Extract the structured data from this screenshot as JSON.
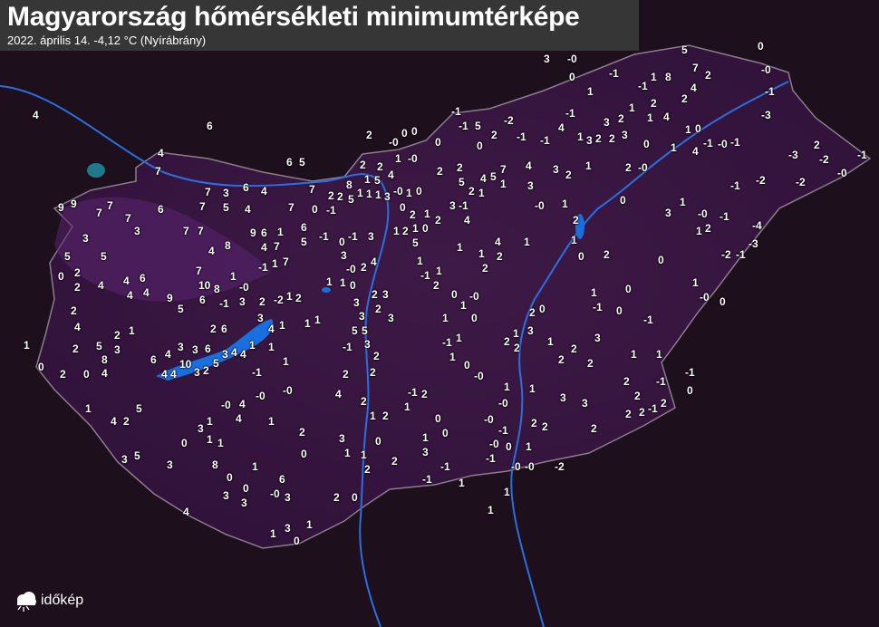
{
  "header": {
    "title": "Magyarország hőmérsékleti minimumtérképe",
    "subtitle": "2022. április 14.  -4,12 °C (Nyírábrány)"
  },
  "logo": {
    "text": "időkép",
    "icon": "cloud-sun-icon"
  },
  "colors": {
    "background": "#1a0c19",
    "country_fill": "#3b1742",
    "water": "#1a6fe0",
    "label": "#ffffff",
    "header_bg": "#3a3a3a"
  },
  "legend_unit": "°C",
  "stations": [
    "4",
    "6",
    "4",
    "7",
    "6",
    "5",
    "7",
    "3",
    "6",
    "4",
    "7",
    "9",
    "9",
    "7",
    "7",
    "6",
    "7",
    "5",
    "4",
    "7",
    "0",
    "-1",
    "7",
    "3",
    "3",
    "7",
    "7",
    "4",
    "8",
    "9",
    "6",
    "4",
    "7",
    "1",
    "6",
    "5",
    "-1",
    "5",
    "5",
    "1",
    "-1",
    "7",
    "7",
    "0",
    "2",
    "2",
    "4",
    "4",
    "6",
    "4",
    "4",
    "9",
    "1",
    "10",
    "8",
    "-0",
    "6",
    "-1",
    "3",
    "2",
    "-2",
    "1",
    "2",
    "2",
    "5",
    "4",
    "2",
    "6",
    "3",
    "4",
    "1",
    "1",
    "1",
    "4",
    "1",
    "2",
    "5",
    "3",
    "1",
    "2",
    "6",
    "4",
    "3",
    "3",
    "6",
    "3",
    "4",
    "1",
    "1",
    "8",
    "4",
    "0",
    "2",
    "0",
    "4",
    "4",
    "10",
    "5",
    "2",
    "3",
    "-1",
    "1",
    "-0",
    "4",
    "-0",
    "-0",
    "1",
    "5",
    "4",
    "2",
    "4",
    "3",
    "1",
    "0",
    "1",
    "1",
    "1",
    "2",
    "3",
    "1",
    "0",
    "3",
    "5",
    "3",
    "8",
    "1",
    "0",
    "6",
    "0",
    "-0",
    "3",
    "3",
    "3",
    "2",
    "0",
    "4",
    "3",
    "1",
    "0",
    "1",
    "2",
    "-0",
    "0",
    "0",
    "1",
    "-0",
    "0",
    "2",
    "2",
    "1",
    "4",
    "8",
    "1",
    "5",
    "1",
    "3",
    "-0",
    "1",
    "0",
    "2",
    "2",
    "5",
    "1",
    "0",
    "3",
    "-0",
    "5",
    "0",
    "0",
    "-1",
    "-1",
    "1",
    "8",
    "7",
    "2",
    "-0",
    "4",
    "2",
    "-1",
    "1",
    "1",
    "2",
    "4",
    "1",
    "-3",
    "-1",
    "-1",
    "5",
    "-2",
    "-1",
    "0",
    "2",
    "-1",
    "-1",
    "4",
    "1",
    "3",
    "2",
    "3",
    "3",
    "2",
    "2",
    "1",
    "0",
    "-1",
    "-0",
    "-1",
    "0",
    "1",
    "4",
    "-3",
    "2",
    "-2",
    "-1",
    "-0",
    "-2",
    "-1",
    "-2",
    "2",
    "2",
    "-0",
    "2",
    "1",
    "4",
    "3",
    "2",
    "4",
    "5",
    "1",
    "7",
    "5",
    "3",
    "1",
    "2",
    "-1",
    "-0",
    "1",
    "0",
    "1",
    "3",
    "-0",
    "-1",
    "-4",
    "1",
    "2",
    "-3",
    "-2",
    "-1",
    "2",
    "1",
    "0",
    "2",
    "0",
    "4",
    "1",
    "1",
    "2",
    "2",
    "1",
    "4",
    "3",
    "2",
    "0",
    "1",
    "2",
    "1",
    "-1",
    "1",
    "2",
    "1",
    "5",
    "1",
    "2",
    "-1",
    "3",
    "0",
    "3",
    "-0",
    "0",
    "2",
    "4",
    "1",
    "1",
    "2",
    "3",
    "3",
    "2",
    "3",
    "3",
    "5",
    "3",
    "-1",
    "2",
    "2",
    "2",
    "4",
    "2",
    "1",
    "2",
    "1",
    "-1",
    "2",
    "1",
    "0",
    "1",
    "-0",
    "0",
    "-1",
    "1",
    "1",
    "0",
    "-0",
    "1",
    "-0",
    "1",
    "3",
    "3",
    "2",
    "2",
    "-1",
    "-1",
    "0",
    "2",
    "2",
    "-1",
    "2",
    "1",
    "-1",
    "0",
    "0",
    "-1",
    "1",
    "-0",
    "0",
    "2",
    "0",
    "3",
    "2",
    "1",
    "2",
    "1",
    "2",
    "3",
    "2",
    "2",
    "1",
    "1",
    "0",
    "0",
    "1",
    "3",
    "2",
    "0",
    "-0",
    "-1",
    "2",
    "2",
    "2",
    "-0",
    "-1",
    "0",
    "1",
    "-0",
    "-0",
    "-2",
    "-1",
    "-1",
    "1",
    "1",
    "1",
    "2",
    "1",
    "5"
  ]
}
